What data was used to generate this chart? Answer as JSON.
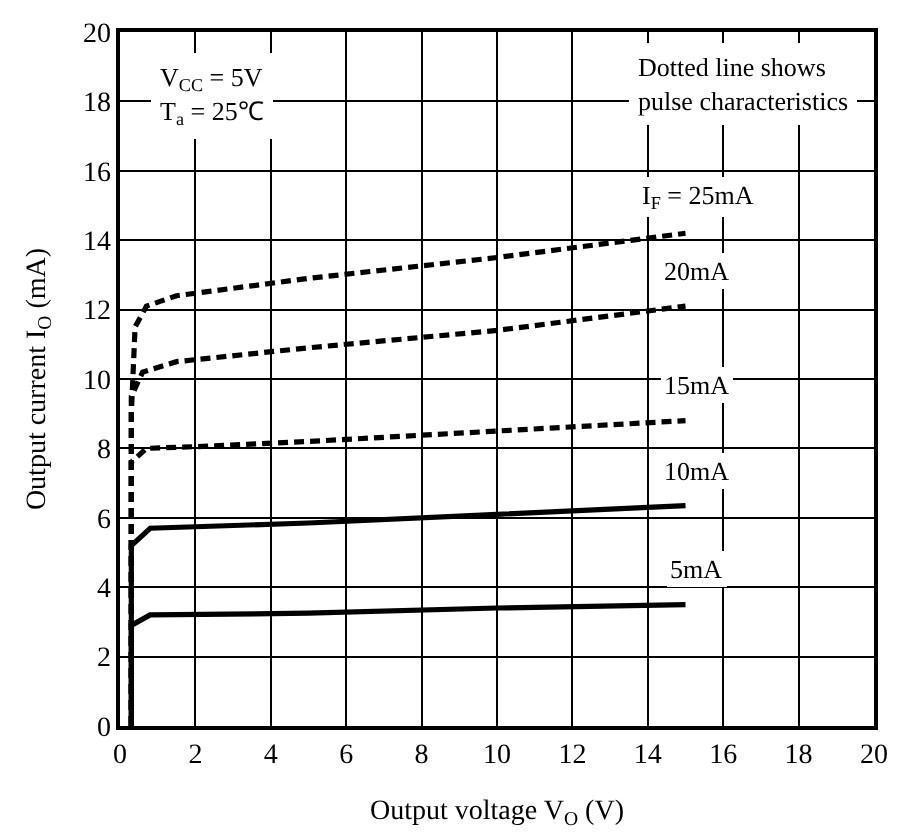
{
  "chart_data": {
    "type": "line",
    "xlabel": "Output voltage V$_{O}$ (V)",
    "ylabel": "Output current I$_{O}$ (mA)",
    "xlim": [
      0,
      20
    ],
    "ylim": [
      0,
      20
    ],
    "xticks": [
      0,
      2,
      4,
      6,
      8,
      10,
      12,
      14,
      16,
      18,
      20
    ],
    "yticks": [
      0,
      2,
      4,
      6,
      8,
      10,
      12,
      14,
      16,
      18,
      20
    ],
    "grid": true,
    "legend": false,
    "marker": "none",
    "annotations": [
      "V$_{CC}$ = 5V\nT$_{a}$ = 25℃",
      "Dotted line shows\npulse characteristics"
    ],
    "series": [
      {
        "name": "I$_{F}$ = 25mA",
        "color": "#000000",
        "line_style": "dashed",
        "x": [
          0.3,
          0.3,
          0.4,
          0.7,
          1.5,
          5,
          10,
          15
        ],
        "values": [
          0,
          9,
          11.5,
          12.1,
          12.4,
          12.9,
          13.5,
          14.2
        ]
      },
      {
        "name": "20mA",
        "color": "#000000",
        "line_style": "dashed",
        "x": [
          0.3,
          0.3,
          0.6,
          1.5,
          5,
          10,
          15
        ],
        "values": [
          0,
          9.5,
          10.2,
          10.5,
          10.9,
          11.4,
          12.1
        ]
      },
      {
        "name": "15mA",
        "color": "#000000",
        "line_style": "dashed",
        "x": [
          0.3,
          0.3,
          0.7,
          2,
          5,
          10,
          15
        ],
        "values": [
          0,
          7.6,
          8.0,
          8.05,
          8.2,
          8.5,
          8.8
        ]
      },
      {
        "name": "10mA",
        "color": "#000000",
        "line_style": "solid",
        "x": [
          0.3,
          0.3,
          0.8,
          5,
          10,
          15
        ],
        "values": [
          0,
          5.2,
          5.7,
          5.85,
          6.1,
          6.35
        ]
      },
      {
        "name": "5mA",
        "color": "#000000",
        "line_style": "solid",
        "x": [
          0.3,
          0.3,
          0.8,
          5,
          10,
          15
        ],
        "values": [
          0,
          2.9,
          3.2,
          3.25,
          3.4,
          3.5
        ]
      }
    ]
  }
}
